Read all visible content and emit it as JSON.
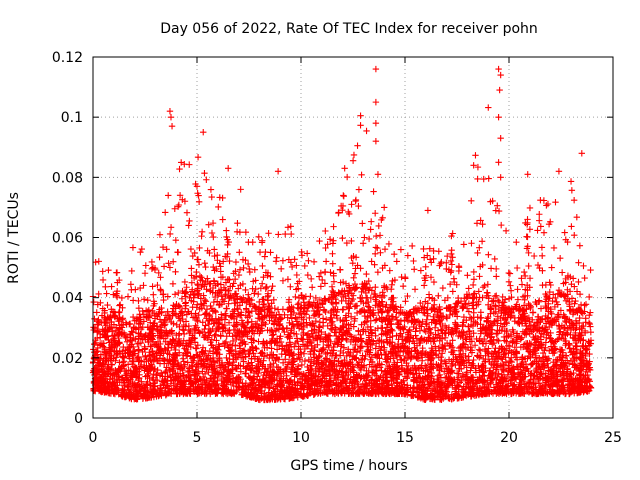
{
  "chart_data": {
    "type": "scatter",
    "title": "Day 056 of 2022, Rate Of TEC Index for receiver pohn",
    "xlabel": "GPS time / hours",
    "ylabel": "ROTI / TECUs",
    "xlim": [
      0,
      25
    ],
    "ylim": [
      0,
      0.12
    ],
    "xticks": [
      0,
      5,
      10,
      15,
      20,
      25
    ],
    "xtick_labels": [
      "0",
      "5",
      "10",
      "15",
      "20",
      "25"
    ],
    "yticks": [
      0,
      0.02,
      0.04,
      0.06,
      0.08,
      0.1,
      0.12
    ],
    "ytick_labels": [
      "0",
      "0.02",
      "0.04",
      "0.06",
      "0.08",
      "0.1",
      "0.12"
    ],
    "grid": true,
    "marker": "+",
    "series": [
      {
        "name": "ROTI",
        "color": "#ff0000",
        "notable_points": [
          {
            "x": 3.7,
            "y": 0.102
          },
          {
            "x": 3.75,
            "y": 0.1
          },
          {
            "x": 3.8,
            "y": 0.097
          },
          {
            "x": 5.3,
            "y": 0.095
          },
          {
            "x": 13.6,
            "y": 0.116
          },
          {
            "x": 13.6,
            "y": 0.105
          },
          {
            "x": 13.6,
            "y": 0.098
          },
          {
            "x": 13.6,
            "y": 0.092
          },
          {
            "x": 13.7,
            "y": 0.081
          },
          {
            "x": 19.5,
            "y": 0.116
          },
          {
            "x": 19.6,
            "y": 0.114
          },
          {
            "x": 19.55,
            "y": 0.109
          },
          {
            "x": 19.5,
            "y": 0.1
          },
          {
            "x": 19.6,
            "y": 0.093
          },
          {
            "x": 19.5,
            "y": 0.085
          },
          {
            "x": 19.6,
            "y": 0.08
          },
          {
            "x": 23.5,
            "y": 0.088
          },
          {
            "x": 6.5,
            "y": 0.083
          },
          {
            "x": 12.1,
            "y": 0.083
          },
          {
            "x": 18.3,
            "y": 0.084
          },
          {
            "x": 22.4,
            "y": 0.082
          },
          {
            "x": 8.9,
            "y": 0.082
          },
          {
            "x": 5.0,
            "y": 0.077
          },
          {
            "x": 7.1,
            "y": 0.076
          },
          {
            "x": 14.0,
            "y": 0.07
          },
          {
            "x": 16.1,
            "y": 0.069
          },
          {
            "x": 20.9,
            "y": 0.081
          }
        ],
        "envelope": {
          "x": [
            0,
            1,
            2,
            3,
            4,
            5,
            6,
            7,
            8,
            9,
            10,
            11,
            12,
            13,
            14,
            15,
            16,
            17,
            18,
            19,
            20,
            21,
            22,
            23,
            24
          ],
          "y_low": [
            0.009,
            0.008,
            0.006,
            0.007,
            0.008,
            0.008,
            0.008,
            0.008,
            0.006,
            0.006,
            0.007,
            0.008,
            0.008,
            0.008,
            0.008,
            0.008,
            0.006,
            0.006,
            0.007,
            0.008,
            0.008,
            0.008,
            0.008,
            0.008,
            0.009
          ],
          "y_dense_top": [
            0.03,
            0.034,
            0.032,
            0.034,
            0.038,
            0.044,
            0.045,
            0.04,
            0.036,
            0.036,
            0.036,
            0.038,
            0.042,
            0.044,
            0.038,
            0.034,
            0.036,
            0.036,
            0.04,
            0.04,
            0.036,
            0.036,
            0.042,
            0.04,
            0.03
          ],
          "y_peak": [
            0.058,
            0.052,
            0.064,
            0.057,
            0.1,
            0.095,
            0.083,
            0.075,
            0.065,
            0.082,
            0.06,
            0.066,
            0.083,
            0.116,
            0.07,
            0.062,
            0.069,
            0.06,
            0.085,
            0.116,
            0.06,
            0.081,
            0.082,
            0.088,
            0.05
          ]
        }
      }
    ]
  }
}
